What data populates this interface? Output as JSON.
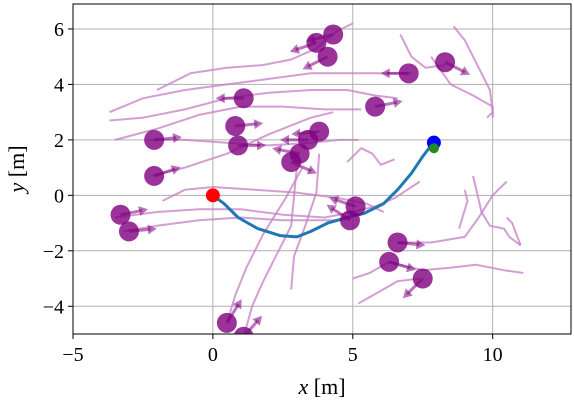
{
  "chart_data": {
    "type": "scatter",
    "xlabel": "x [m]",
    "ylabel": "y [m]",
    "xlim": [
      -5,
      12.8
    ],
    "ylim": [
      -5,
      6.9
    ],
    "x_ticks": [
      -5,
      0,
      5,
      10
    ],
    "x_tick_labels": [
      "−5",
      "0",
      "5",
      "10"
    ],
    "y_ticks": [
      -4,
      -2,
      0,
      2,
      4,
      6
    ],
    "y_tick_labels": [
      "−4",
      "−2",
      "0",
      "2",
      "4",
      "6"
    ],
    "grid": true,
    "colors": {
      "robot_path": "#1f77b4",
      "start": "#ff0000",
      "goal": "#0000ff",
      "robot_end": "#228B22",
      "pedestrian": "#800080",
      "pedestrian_trail": "#c47fc4",
      "grid": "#b0b0b0"
    },
    "robot_path": [
      [
        0,
        0
      ],
      [
        0.4,
        -0.3
      ],
      [
        0.9,
        -0.8
      ],
      [
        1.6,
        -1.2
      ],
      [
        2.4,
        -1.45
      ],
      [
        3.0,
        -1.5
      ],
      [
        3.5,
        -1.3
      ],
      [
        4.1,
        -1.0
      ],
      [
        4.8,
        -0.8
      ],
      [
        5.4,
        -0.65
      ],
      [
        6.1,
        -0.3
      ],
      [
        6.6,
        0.2
      ],
      [
        7.1,
        0.8
      ],
      [
        7.5,
        1.4
      ],
      [
        7.8,
        1.8
      ]
    ],
    "start": {
      "x": 0,
      "y": 0
    },
    "goal": {
      "x": 7.9,
      "y": 1.9
    },
    "robot_end": {
      "x": 7.9,
      "y": 1.7
    },
    "pedestrians": [
      {
        "x": 3.7,
        "y": 5.5,
        "dx": -0.9,
        "dy": -0.3
      },
      {
        "x": 4.3,
        "y": 5.8,
        "dx": -0.8,
        "dy": -0.2
      },
      {
        "x": 4.1,
        "y": 5.0,
        "dx": -0.8,
        "dy": -0.4
      },
      {
        "x": 7.0,
        "y": 4.4,
        "dx": -1.0,
        "dy": 0.0
      },
      {
        "x": 8.3,
        "y": 4.8,
        "dx": 0.8,
        "dy": -0.4
      },
      {
        "x": 1.1,
        "y": 3.5,
        "dx": -1.0,
        "dy": 0.0
      },
      {
        "x": 5.8,
        "y": 3.2,
        "dx": 1.0,
        "dy": 0.2
      },
      {
        "x": -2.1,
        "y": 2.0,
        "dx": 1.0,
        "dy": 0.1
      },
      {
        "x": 0.8,
        "y": 2.5,
        "dx": 1.0,
        "dy": 0.1
      },
      {
        "x": 3.8,
        "y": 2.3,
        "dx": -1.0,
        "dy": -0.1
      },
      {
        "x": 3.4,
        "y": 2.0,
        "dx": -1.0,
        "dy": 0.0
      },
      {
        "x": 0.9,
        "y": 1.8,
        "dx": 1.0,
        "dy": 0.0
      },
      {
        "x": 3.1,
        "y": 1.5,
        "dx": -1.0,
        "dy": 0.2
      },
      {
        "x": 2.8,
        "y": 1.2,
        "dx": 0.9,
        "dy": -0.4
      },
      {
        "x": -2.1,
        "y": 0.7,
        "dx": 0.9,
        "dy": 0.3
      },
      {
        "x": -3.3,
        "y": -0.7,
        "dx": 1.0,
        "dy": 0.2
      },
      {
        "x": -3.0,
        "y": -1.3,
        "dx": 1.0,
        "dy": 0.1
      },
      {
        "x": 5.1,
        "y": -0.4,
        "dx": -0.9,
        "dy": 0.3
      },
      {
        "x": 4.9,
        "y": -0.9,
        "dx": -0.9,
        "dy": 0.6
      },
      {
        "x": 6.6,
        "y": -1.7,
        "dx": 1.0,
        "dy": -0.1
      },
      {
        "x": 6.3,
        "y": -2.4,
        "dx": 1.0,
        "dy": -0.3
      },
      {
        "x": 7.5,
        "y": -3.0,
        "dx": -0.7,
        "dy": -0.7
      },
      {
        "x": 0.5,
        "y": -4.6,
        "dx": 0.5,
        "dy": 0.8
      },
      {
        "x": 1.1,
        "y": -5.1,
        "dx": 0.7,
        "dy": 0.8
      }
    ],
    "trails": [
      [
        [
          -3.7,
          2.7
        ],
        [
          -2.5,
          2.8
        ],
        [
          -1.0,
          3.1
        ],
        [
          0.5,
          3.5
        ],
        [
          2.0,
          3.7
        ],
        [
          3.5,
          3.8
        ],
        [
          4.8,
          3.8
        ],
        [
          5.8,
          3.6
        ],
        [
          6.6,
          3.5
        ]
      ],
      [
        [
          -3.7,
          3.0
        ],
        [
          -2.5,
          3.5
        ],
        [
          -1.0,
          3.8
        ],
        [
          0.5,
          4.0
        ],
        [
          2.0,
          4.2
        ],
        [
          3.5,
          4.4
        ],
        [
          5.0,
          4.4
        ],
        [
          6.3,
          4.4
        ],
        [
          7.1,
          4.4
        ]
      ],
      [
        [
          -3.5,
          2.0
        ],
        [
          -2.0,
          2.4
        ],
        [
          -0.5,
          2.9
        ],
        [
          1.0,
          3.2
        ],
        [
          2.5,
          3.2
        ],
        [
          4.0,
          3.1
        ],
        [
          5.3,
          3.1
        ]
      ],
      [
        [
          -2.0,
          3.8
        ],
        [
          -0.8,
          4.4
        ],
        [
          0.5,
          4.6
        ],
        [
          1.8,
          4.7
        ],
        [
          2.8,
          4.9
        ],
        [
          3.7,
          5.3
        ],
        [
          4.4,
          5.9
        ],
        [
          5.0,
          6.2
        ]
      ],
      [
        [
          -2.2,
          2.0
        ],
        [
          -1.0,
          2.0
        ],
        [
          0.5,
          1.9
        ],
        [
          2.0,
          1.8
        ],
        [
          3.5,
          1.9
        ],
        [
          4.5,
          2.0
        ],
        [
          5.2,
          2.0
        ]
      ],
      [
        [
          -2.2,
          0.7
        ],
        [
          -1.0,
          1.0
        ],
        [
          0.5,
          1.5
        ],
        [
          2.0,
          2.2
        ],
        [
          3.5,
          2.8
        ],
        [
          4.3,
          3.0
        ]
      ],
      [
        [
          -1.8,
          -0.2
        ],
        [
          -1.0,
          0.2
        ],
        [
          0.0,
          0.3
        ],
        [
          1.5,
          0.2
        ],
        [
          3.0,
          0.1
        ],
        [
          4.5,
          -0.1
        ],
        [
          5.5,
          -0.3
        ],
        [
          6.1,
          -0.6
        ]
      ],
      [
        [
          -3.5,
          -0.8
        ],
        [
          -2.0,
          -0.6
        ],
        [
          -0.5,
          -0.5
        ],
        [
          1.0,
          -0.5
        ],
        [
          2.5,
          -0.7
        ],
        [
          4.0,
          -0.8
        ],
        [
          5.0,
          -0.6
        ],
        [
          5.8,
          -0.4
        ],
        [
          6.5,
          -0.1
        ],
        [
          7.4,
          0.5
        ]
      ],
      [
        [
          -3.2,
          -1.3
        ],
        [
          -2.0,
          -1.1
        ],
        [
          -0.5,
          -0.9
        ],
        [
          1.0,
          -0.8
        ],
        [
          2.5,
          -0.9
        ],
        [
          4.0,
          -0.9
        ],
        [
          4.6,
          -0.9
        ]
      ],
      [
        [
          2.8,
          -3.4
        ],
        [
          2.9,
          -2.2
        ],
        [
          3.3,
          -1.1
        ],
        [
          3.7,
          0.1
        ],
        [
          3.8,
          1.5
        ]
      ],
      [
        [
          5.2,
          -3.9
        ],
        [
          5.9,
          -3.5
        ],
        [
          6.6,
          -3.1
        ],
        [
          7.4,
          -3.0
        ]
      ],
      [
        [
          5.0,
          -3.0
        ],
        [
          5.6,
          -2.8
        ],
        [
          6.3,
          -2.4
        ]
      ],
      [
        [
          6.3,
          -2.4
        ],
        [
          7.5,
          -2.7
        ],
        [
          8.6,
          -2.6
        ],
        [
          9.4,
          -2.5
        ],
        [
          10.4,
          -2.7
        ],
        [
          11.1,
          -2.8
        ]
      ],
      [
        [
          6.6,
          -1.7
        ],
        [
          7.8,
          -1.7
        ],
        [
          9.0,
          -1.5
        ],
        [
          9.5,
          -0.8
        ],
        [
          10.0,
          0.0
        ],
        [
          10.5,
          0.5
        ]
      ],
      [
        [
          9.3,
          0.7
        ],
        [
          9.6,
          -0.6
        ],
        [
          9.9,
          -1.1
        ],
        [
          10.4,
          -1.2
        ],
        [
          10.6,
          -1.5
        ],
        [
          11.0,
          -1.8
        ]
      ],
      [
        [
          8.8,
          -1.2
        ],
        [
          9.1,
          -0.2
        ],
        [
          9.0,
          0.2
        ]
      ],
      [
        [
          10.5,
          -0.8
        ],
        [
          10.7,
          -1.0
        ],
        [
          11.0,
          -1.8
        ]
      ],
      [
        [
          8.6,
          6.1
        ],
        [
          9.0,
          5.6
        ],
        [
          9.3,
          5.0
        ],
        [
          9.6,
          4.4
        ],
        [
          9.9,
          3.8
        ],
        [
          10.0,
          3.0
        ],
        [
          9.8,
          2.8
        ]
      ],
      [
        [
          7.8,
          5.0
        ],
        [
          8.5,
          4.0
        ],
        [
          9.3,
          3.6
        ],
        [
          10.0,
          3.2
        ],
        [
          10.0,
          2.8
        ]
      ],
      [
        [
          6.7,
          5.8
        ],
        [
          7.1,
          5.0
        ],
        [
          7.6,
          4.6
        ],
        [
          8.3,
          4.7
        ]
      ],
      [
        [
          4.8,
          1.2
        ],
        [
          5.3,
          1.7
        ],
        [
          5.7,
          1.5
        ],
        [
          6.0,
          1.1
        ],
        [
          6.5,
          1.3
        ]
      ],
      [
        [
          0.5,
          -4.6
        ],
        [
          0.8,
          -3.6
        ],
        [
          1.2,
          -2.6
        ],
        [
          1.8,
          -1.4
        ],
        [
          2.6,
          -0.1
        ],
        [
          3.2,
          1.0
        ]
      ],
      [
        [
          1.1,
          -5.1
        ],
        [
          1.4,
          -4.0
        ],
        [
          1.8,
          -3.1
        ],
        [
          2.3,
          -2.1
        ],
        [
          2.8,
          -1.1
        ],
        [
          3.0,
          1.0
        ]
      ]
    ]
  }
}
